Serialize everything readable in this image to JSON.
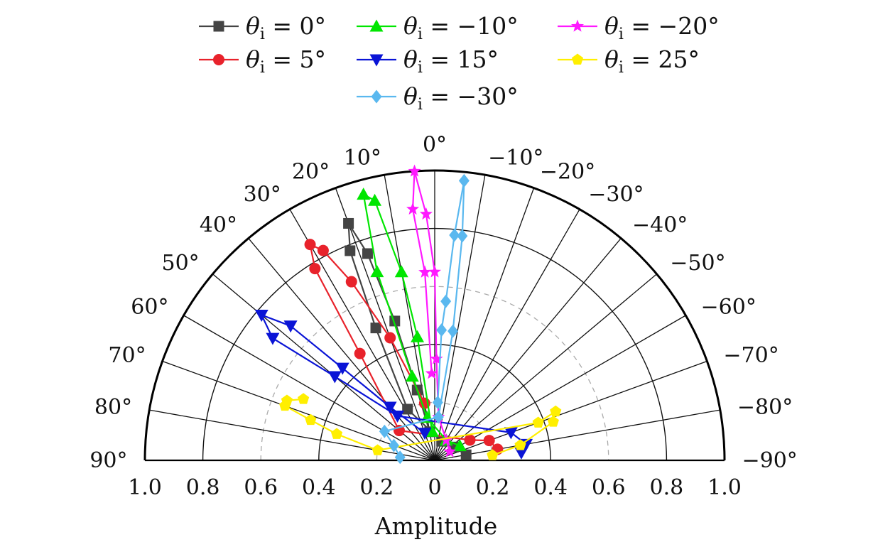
{
  "chart_data": {
    "type": "polar-line",
    "title": "",
    "xlabel": "Amplitude",
    "radial_range": [
      0,
      1.0
    ],
    "radial_ticks": [
      "1.0",
      "0.8",
      "0.6",
      "0.4",
      "0.2",
      "0",
      "0.2",
      "0.4",
      "0.6",
      "0.8",
      "1.0"
    ],
    "angle_range_deg": [
      -90,
      90
    ],
    "angle_ticks": [
      {
        "deg": 0,
        "label": "0°"
      },
      {
        "deg": 10,
        "label": "10°"
      },
      {
        "deg": 20,
        "label": "20°"
      },
      {
        "deg": 30,
        "label": "30°"
      },
      {
        "deg": 40,
        "label": "40°"
      },
      {
        "deg": 50,
        "label": "50°"
      },
      {
        "deg": 60,
        "label": "60°"
      },
      {
        "deg": 70,
        "label": "70°"
      },
      {
        "deg": 80,
        "label": "80°"
      },
      {
        "deg": 90,
        "label": "90°"
      },
      {
        "deg": -10,
        "label": "−10°"
      },
      {
        "deg": -20,
        "label": "−20°"
      },
      {
        "deg": -30,
        "label": "−30°"
      },
      {
        "deg": -40,
        "label": "−40°"
      },
      {
        "deg": -50,
        "label": "−50°"
      },
      {
        "deg": -60,
        "label": "−60°"
      },
      {
        "deg": -70,
        "label": "−70°"
      },
      {
        "deg": -80,
        "label": "−80°"
      },
      {
        "deg": -90,
        "label": "−90°"
      }
    ],
    "grid": true,
    "legend_position": "top",
    "series": [
      {
        "name": "θi = 0°",
        "label_prefix": "θ",
        "label_sub": "i",
        "label_rest": " = 0°",
        "color": "#444444",
        "marker": "square",
        "points": [
          [
            10,
            0.1
          ],
          [
            14,
            0.25
          ],
          [
            16,
            0.5
          ],
          [
            18,
            0.75
          ],
          [
            20,
            0.87
          ],
          [
            22,
            0.78
          ],
          [
            24,
            0.5
          ],
          [
            28,
            0.2
          ],
          [
            -20,
            0.07
          ],
          [
            -55,
            0.08
          ],
          [
            -80,
            0.11
          ]
        ]
      },
      {
        "name": "θi = 5°",
        "label_prefix": "θ",
        "label_sub": "i",
        "label_rest": " = 5°",
        "color": "#e8222b",
        "marker": "circle",
        "points": [
          [
            10,
            0.2
          ],
          [
            20,
            0.45
          ],
          [
            25,
            0.68
          ],
          [
            28,
            0.82
          ],
          [
            30,
            0.86
          ],
          [
            32,
            0.78
          ],
          [
            35,
            0.45
          ],
          [
            50,
            0.16
          ],
          [
            -60,
            0.14
          ],
          [
            -70,
            0.2
          ],
          [
            -80,
            0.22
          ]
        ]
      },
      {
        "name": "θi = −10°",
        "label_prefix": "θ",
        "label_sub": "i",
        "label_rest": " = −10°",
        "color": "#00e600",
        "marker": "triangle-up",
        "points": [
          [
            5,
            0.1
          ],
          [
            8,
            0.43
          ],
          [
            10,
            0.66
          ],
          [
            13,
            0.92
          ],
          [
            15,
            0.95
          ],
          [
            17,
            0.68
          ],
          [
            15,
            0.3
          ],
          [
            10,
            0.15
          ],
          [
            -30,
            0.08
          ],
          [
            -60,
            0.1
          ]
        ]
      },
      {
        "name": "θi = 15°",
        "label_prefix": "θ",
        "label_sub": "i",
        "label_rest": " = 15°",
        "color": "#0a14d6",
        "marker": "triangle-down",
        "points": [
          [
            20,
            0.1
          ],
          [
            40,
            0.24
          ],
          [
            45,
            0.45
          ],
          [
            47,
            0.68
          ],
          [
            50,
            0.78
          ],
          [
            53,
            0.7
          ],
          [
            50,
            0.45
          ],
          [
            40,
            0.2
          ],
          [
            -70,
            0.28
          ],
          [
            -80,
            0.32
          ],
          [
            -85,
            0.3
          ]
        ]
      },
      {
        "name": "θi = −20°",
        "label_prefix": "θ",
        "label_sub": "i",
        "label_rest": " = −20°",
        "color": "#ff19ff",
        "marker": "star",
        "points": [
          [
            2,
            0.3
          ],
          [
            3,
            0.65
          ],
          [
            5,
            0.87
          ],
          [
            4,
            1.0
          ],
          [
            2,
            0.85
          ],
          [
            0,
            0.65
          ],
          [
            -1,
            0.35
          ],
          [
            -5,
            0.15
          ],
          [
            -30,
            0.08
          ],
          [
            -60,
            0.06
          ]
        ]
      },
      {
        "name": "θi = 25°",
        "label_prefix": "θ",
        "label_sub": "i",
        "label_rest": " = 25°",
        "color": "#ffef00",
        "marker": "pentagon",
        "points": [
          [
            65,
            0.5
          ],
          [
            68,
            0.55
          ],
          [
            70,
            0.55
          ],
          [
            72,
            0.45
          ],
          [
            75,
            0.35
          ],
          [
            80,
            0.2
          ],
          [
            -70,
            0.38
          ],
          [
            -68,
            0.45
          ],
          [
            -72,
            0.43
          ],
          [
            -80,
            0.3
          ],
          [
            -85,
            0.2
          ]
        ]
      },
      {
        "name": "θi = −30°",
        "label_prefix": "θ",
        "label_sub": "i",
        "label_rest": " = −30°",
        "color": "#5ab8ef",
        "marker": "diamond",
        "points": [
          [
            -3,
            0.2
          ],
          [
            -3,
            0.45
          ],
          [
            -4,
            0.55
          ],
          [
            -5,
            0.78
          ],
          [
            -6,
            0.97
          ],
          [
            -7,
            0.78
          ],
          [
            -8,
            0.45
          ],
          [
            -5,
            0.15
          ],
          [
            60,
            0.2
          ],
          [
            70,
            0.15
          ],
          [
            85,
            0.12
          ]
        ]
      }
    ]
  }
}
